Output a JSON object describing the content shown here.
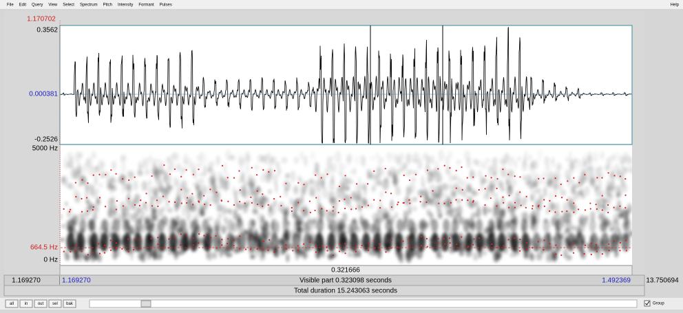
{
  "menu": {
    "items": [
      "File",
      "Edit",
      "Query",
      "View",
      "Select",
      "Spectrum",
      "Pitch",
      "Intensity",
      "Formant",
      "Pulses"
    ],
    "help": "Help"
  },
  "waveform": {
    "cursor_time": "1.170702",
    "ymax": "0.3562",
    "ymid": "0.000381",
    "ymin": "-0.2526"
  },
  "spectrogram": {
    "fmax": "5000 Hz",
    "formant": "664.5 Hz",
    "fmin": "0 Hz"
  },
  "time_bar": {
    "selection": "0.321666",
    "left_outer": "1.169270",
    "left": "1.169270",
    "visible": "Visible part 0.323098 seconds",
    "right": "1.492369",
    "right_outer": "13.750694",
    "total": "Total duration 15.243063 seconds"
  },
  "buttons": [
    "all",
    "in",
    "out",
    "sel",
    "bak"
  ],
  "group": "Group"
}
